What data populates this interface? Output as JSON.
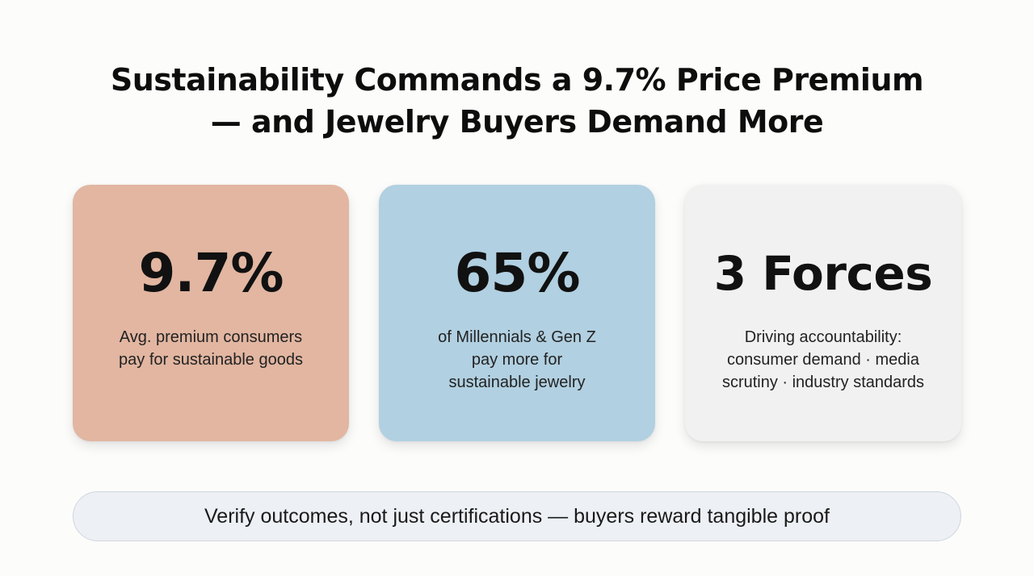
{
  "slide": {
    "title_lines": [
      "Sustainability Commands a 9.7% Price Premium",
      "— and Jewelry Buyers Demand More"
    ],
    "cards": [
      {
        "stat": "9.7%",
        "description_lines": [
          "Avg. premium consumers",
          "pay for sustainable goods"
        ],
        "color": "#e2b6a1"
      },
      {
        "stat": "65%",
        "description_lines": [
          "of Millennials & Gen Z",
          "pay more for",
          "sustainable jewelry"
        ],
        "color": "#b1d0e1"
      },
      {
        "stat": "3 Forces",
        "description_lines": [
          "Driving accountability:",
          "consumer demand · media",
          "scrutiny · industry standards"
        ],
        "color": "#f1f1f1"
      }
    ],
    "banner": {
      "text": "Verify outcomes, not just certifications — buyers reward tangible proof",
      "color": "#edf0f4"
    }
  }
}
